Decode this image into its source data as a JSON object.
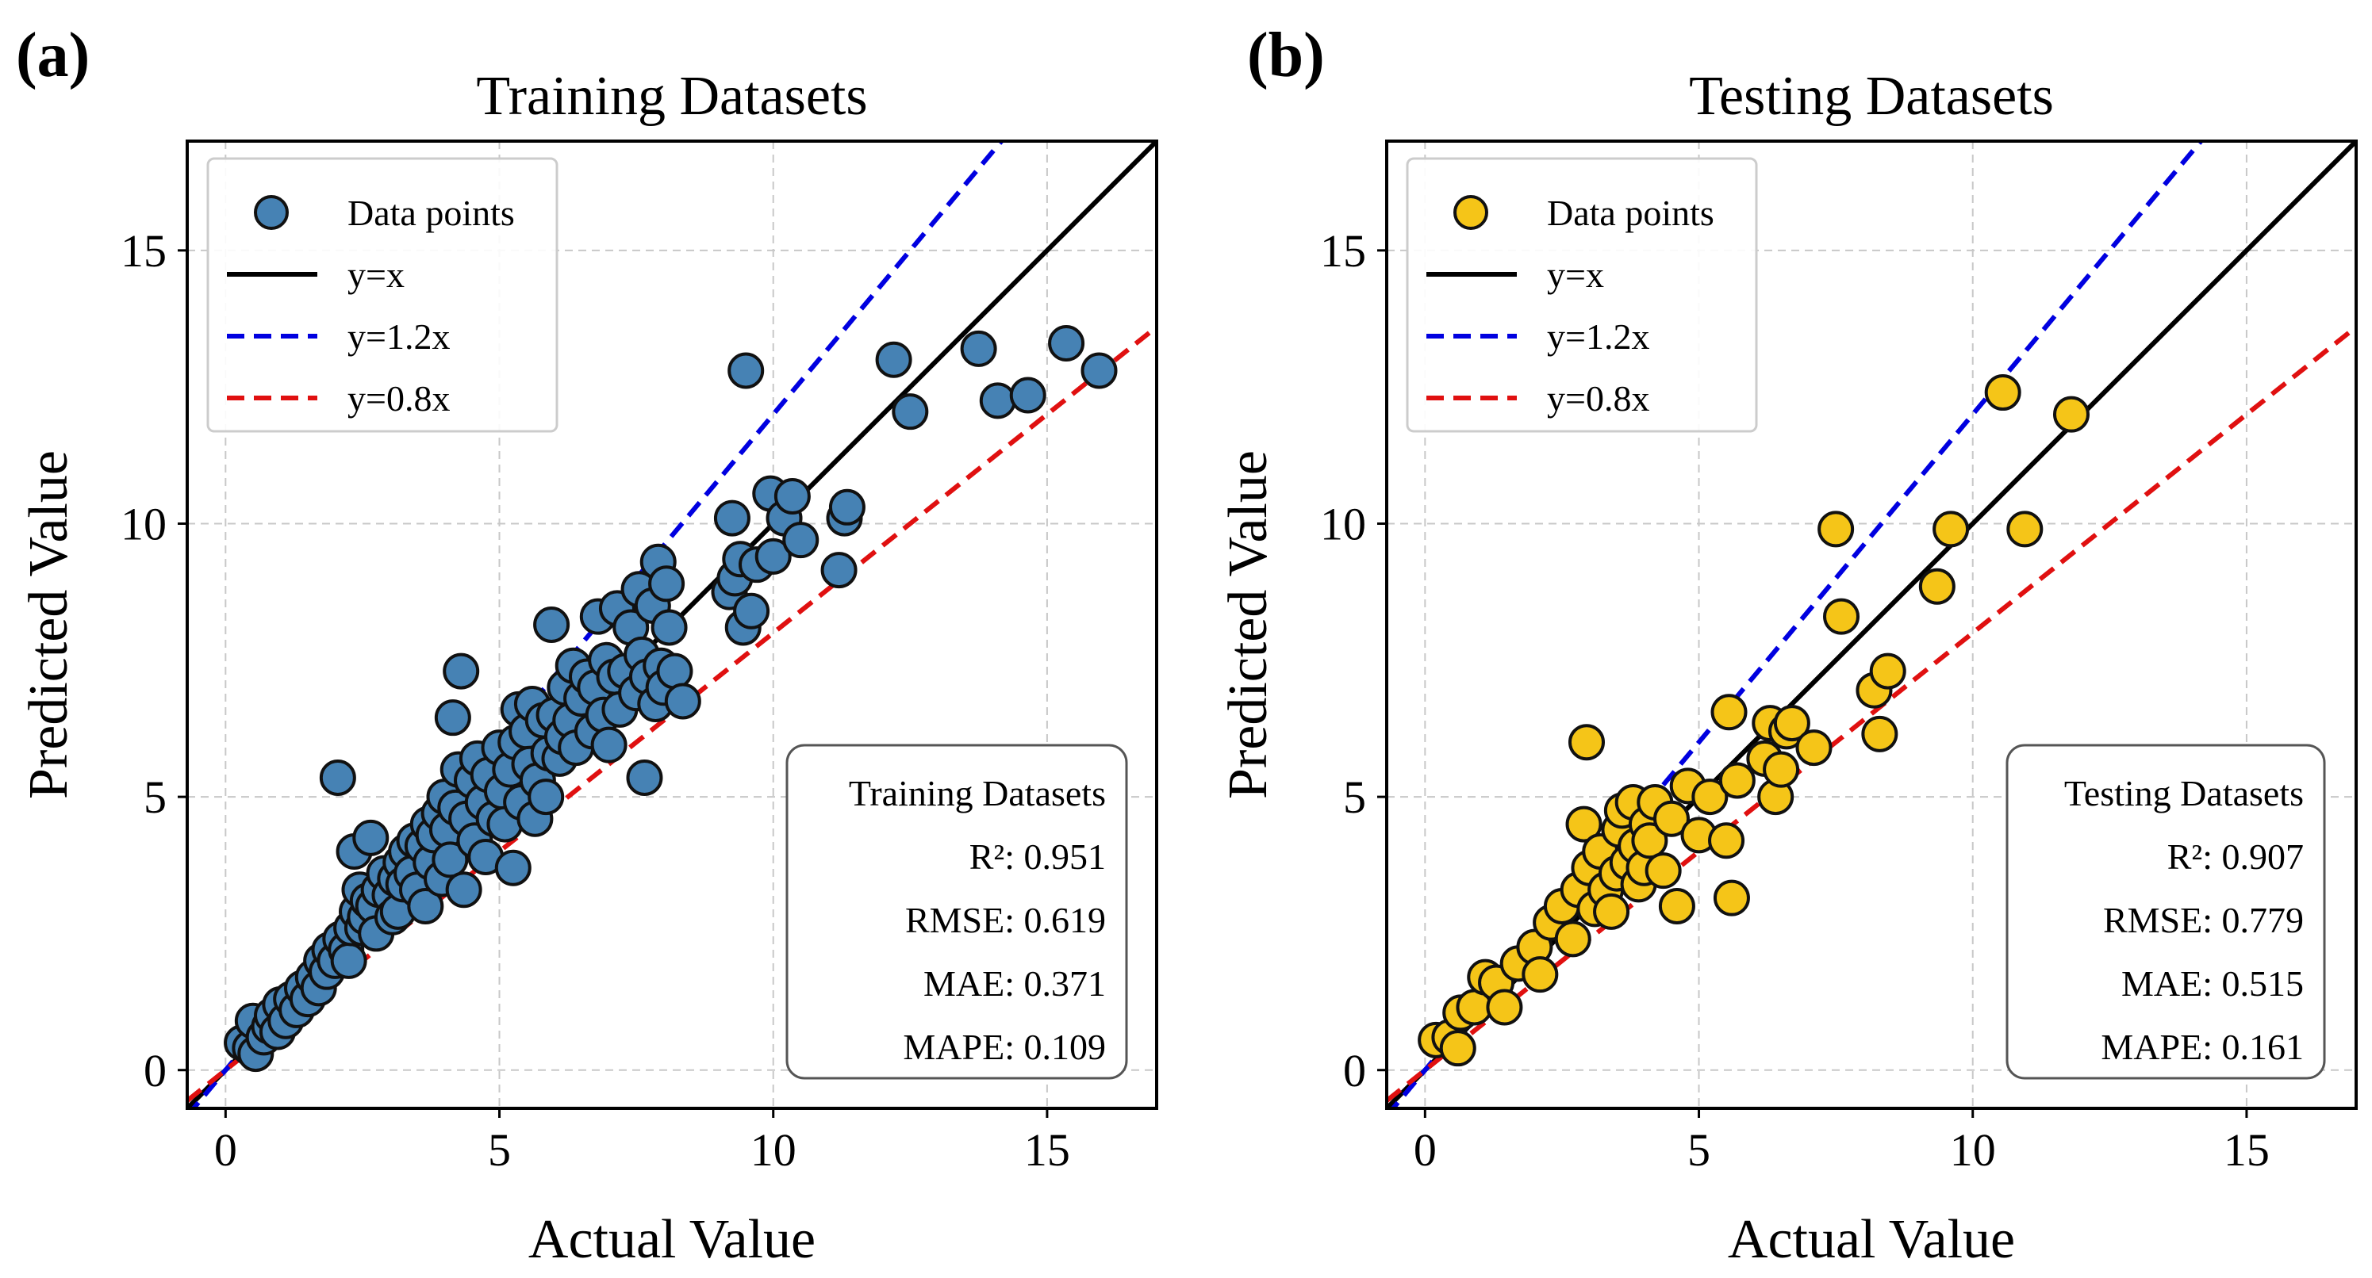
{
  "chart_data": [
    {
      "type": "scatter",
      "panel_label": "(a)",
      "title": "Training Datasets",
      "xlabel": "Actual Value",
      "ylabel": "Predicted Value",
      "xlim": [
        -0.7,
        17
      ],
      "ylim": [
        -0.7,
        17
      ],
      "xticks": [
        0,
        5,
        10,
        15
      ],
      "yticks": [
        0,
        5,
        10,
        15
      ],
      "xtick_labels": [
        "0",
        "5",
        "10",
        "15"
      ],
      "ytick_labels": [
        "0",
        "5",
        "10",
        "15"
      ],
      "grid": true,
      "legend_position": "top-left",
      "legend": [
        {
          "label": "Data points",
          "kind": "marker"
        },
        {
          "label": "y=x",
          "kind": "line",
          "slope": 1.0
        },
        {
          "label": "y=1.2x",
          "kind": "line",
          "slope": 1.2
        },
        {
          "label": "y=0.8x",
          "kind": "line",
          "slope": 0.8
        }
      ],
      "marker_color": "#4682b4",
      "stats_title": "Training Datasets",
      "stats": [
        {
          "label": "R²: 0.951"
        },
        {
          "label": "RMSE: 0.619"
        },
        {
          "label": "MAE: 0.371"
        },
        {
          "label": "MAPE: 0.109"
        }
      ],
      "points": [
        [
          0.3,
          0.5
        ],
        [
          0.45,
          0.4
        ],
        [
          0.5,
          0.9
        ],
        [
          0.55,
          0.3
        ],
        [
          0.7,
          0.6
        ],
        [
          0.8,
          0.8
        ],
        [
          0.85,
          1.0
        ],
        [
          0.95,
          0.7
        ],
        [
          1.0,
          1.2
        ],
        [
          1.1,
          0.9
        ],
        [
          1.2,
          1.3
        ],
        [
          1.3,
          1.1
        ],
        [
          1.4,
          1.5
        ],
        [
          1.5,
          1.3
        ],
        [
          1.6,
          1.7
        ],
        [
          1.7,
          1.5
        ],
        [
          1.75,
          2.0
        ],
        [
          1.85,
          1.8
        ],
        [
          1.9,
          2.2
        ],
        [
          2.0,
          2.0
        ],
        [
          2.05,
          5.35
        ],
        [
          2.1,
          2.4
        ],
        [
          2.2,
          2.2
        ],
        [
          2.25,
          2.0
        ],
        [
          2.3,
          2.6
        ],
        [
          2.35,
          4.0
        ],
        [
          2.4,
          2.9
        ],
        [
          2.45,
          3.3
        ],
        [
          2.5,
          2.6
        ],
        [
          2.55,
          2.8
        ],
        [
          2.6,
          3.1
        ],
        [
          2.65,
          4.25
        ],
        [
          2.7,
          3.0
        ],
        [
          2.75,
          2.5
        ],
        [
          2.8,
          3.3
        ],
        [
          2.9,
          3.6
        ],
        [
          3.0,
          3.2
        ],
        [
          3.05,
          2.8
        ],
        [
          3.1,
          3.5
        ],
        [
          3.15,
          2.9
        ],
        [
          3.2,
          3.8
        ],
        [
          3.25,
          3.4
        ],
        [
          3.3,
          4.0
        ],
        [
          3.4,
          3.6
        ],
        [
          3.45,
          4.2
        ],
        [
          3.5,
          3.3
        ],
        [
          3.6,
          4.1
        ],
        [
          3.65,
          3.0
        ],
        [
          3.7,
          4.5
        ],
        [
          3.75,
          3.8
        ],
        [
          3.8,
          4.3
        ],
        [
          3.9,
          4.7
        ],
        [
          3.95,
          3.5
        ],
        [
          4.0,
          5.0
        ],
        [
          4.05,
          4.4
        ],
        [
          4.1,
          3.85
        ],
        [
          4.15,
          6.45
        ],
        [
          4.2,
          4.8
        ],
        [
          4.25,
          5.5
        ],
        [
          4.3,
          7.3
        ],
        [
          4.35,
          3.3
        ],
        [
          4.4,
          4.6
        ],
        [
          4.5,
          5.3
        ],
        [
          4.55,
          4.2
        ],
        [
          4.6,
          5.7
        ],
        [
          4.7,
          4.9
        ],
        [
          4.75,
          3.9
        ],
        [
          4.8,
          5.4
        ],
        [
          4.9,
          4.6
        ],
        [
          5.0,
          5.9
        ],
        [
          5.05,
          5.1
        ],
        [
          5.1,
          4.5
        ],
        [
          5.2,
          5.5
        ],
        [
          5.25,
          3.7
        ],
        [
          5.3,
          6.0
        ],
        [
          5.35,
          6.6
        ],
        [
          5.4,
          4.9
        ],
        [
          5.5,
          6.2
        ],
        [
          5.55,
          5.6
        ],
        [
          5.6,
          6.7
        ],
        [
          5.65,
          4.6
        ],
        [
          5.7,
          5.3
        ],
        [
          5.8,
          6.4
        ],
        [
          5.85,
          5.0
        ],
        [
          5.9,
          5.8
        ],
        [
          5.95,
          8.15
        ],
        [
          6.0,
          6.5
        ],
        [
          6.1,
          5.7
        ],
        [
          6.15,
          6.1
        ],
        [
          6.2,
          7.0
        ],
        [
          6.3,
          6.4
        ],
        [
          6.35,
          7.4
        ],
        [
          6.4,
          5.9
        ],
        [
          6.5,
          6.8
        ],
        [
          6.6,
          7.2
        ],
        [
          6.7,
          6.2
        ],
        [
          6.75,
          7.0
        ],
        [
          6.8,
          8.3
        ],
        [
          6.9,
          6.5
        ],
        [
          6.95,
          7.5
        ],
        [
          7.0,
          5.95
        ],
        [
          7.1,
          7.2
        ],
        [
          7.15,
          8.45
        ],
        [
          7.2,
          6.6
        ],
        [
          7.3,
          7.3
        ],
        [
          7.4,
          8.1
        ],
        [
          7.5,
          6.9
        ],
        [
          7.55,
          8.8
        ],
        [
          7.6,
          7.6
        ],
        [
          7.65,
          5.35
        ],
        [
          7.7,
          7.2
        ],
        [
          7.8,
          8.5
        ],
        [
          7.85,
          6.7
        ],
        [
          7.9,
          9.3
        ],
        [
          7.95,
          7.4
        ],
        [
          8.0,
          7.0
        ],
        [
          8.05,
          8.9
        ],
        [
          8.1,
          8.1
        ],
        [
          8.2,
          7.3
        ],
        [
          8.35,
          6.75
        ],
        [
          9.2,
          8.75
        ],
        [
          9.25,
          10.1
        ],
        [
          9.3,
          9.0
        ],
        [
          9.4,
          9.35
        ],
        [
          9.45,
          8.1
        ],
        [
          9.5,
          12.8
        ],
        [
          9.6,
          8.4
        ],
        [
          9.7,
          9.25
        ],
        [
          9.95,
          10.55
        ],
        [
          10.0,
          9.4
        ],
        [
          10.2,
          10.1
        ],
        [
          10.35,
          10.5
        ],
        [
          10.5,
          9.7
        ],
        [
          11.2,
          9.15
        ],
        [
          11.3,
          10.1
        ],
        [
          11.35,
          10.3
        ],
        [
          12.2,
          13.0
        ],
        [
          12.5,
          12.05
        ],
        [
          13.75,
          13.2
        ],
        [
          14.1,
          12.25
        ],
        [
          14.65,
          12.35
        ],
        [
          15.35,
          13.3
        ],
        [
          15.95,
          12.8
        ]
      ]
    },
    {
      "type": "scatter",
      "panel_label": "(b)",
      "title": "Testing Datasets",
      "xlabel": "Actual Value",
      "ylabel": "Predicted Value",
      "xlim": [
        -0.7,
        17
      ],
      "ylim": [
        -0.7,
        17
      ],
      "xticks": [
        0,
        5,
        10,
        15
      ],
      "yticks": [
        0,
        5,
        10,
        15
      ],
      "xtick_labels": [
        "0",
        "5",
        "10",
        "15"
      ],
      "ytick_labels": [
        "0",
        "5",
        "10",
        "15"
      ],
      "grid": true,
      "legend_position": "top-left",
      "legend": [
        {
          "label": "Data points",
          "kind": "marker"
        },
        {
          "label": "y=x",
          "kind": "line",
          "slope": 1.0
        },
        {
          "label": "y=1.2x",
          "kind": "line",
          "slope": 1.2
        },
        {
          "label": "y=0.8x",
          "kind": "line",
          "slope": 0.8
        }
      ],
      "marker_color": "#f5c518",
      "stats_title": "Testing Datasets",
      "stats": [
        {
          "label": "R²: 0.907"
        },
        {
          "label": "RMSE: 0.779"
        },
        {
          "label": "MAE: 0.515"
        },
        {
          "label": "MAPE: 0.161"
        }
      ],
      "points": [
        [
          0.2,
          0.55
        ],
        [
          0.45,
          0.6
        ],
        [
          0.6,
          0.4
        ],
        [
          0.65,
          1.05
        ],
        [
          0.9,
          1.15
        ],
        [
          1.1,
          1.7
        ],
        [
          1.3,
          1.6
        ],
        [
          1.45,
          1.15
        ],
        [
          1.7,
          1.95
        ],
        [
          2.0,
          2.25
        ],
        [
          2.1,
          1.75
        ],
        [
          2.3,
          2.7
        ],
        [
          2.5,
          3.0
        ],
        [
          2.7,
          2.4
        ],
        [
          2.8,
          3.3
        ],
        [
          2.9,
          4.5
        ],
        [
          2.95,
          6.0
        ],
        [
          3.0,
          3.7
        ],
        [
          3.1,
          2.95
        ],
        [
          3.2,
          4.0
        ],
        [
          3.3,
          3.3
        ],
        [
          3.4,
          2.9
        ],
        [
          3.5,
          3.6
        ],
        [
          3.55,
          4.4
        ],
        [
          3.6,
          4.75
        ],
        [
          3.7,
          3.8
        ],
        [
          3.8,
          4.9
        ],
        [
          3.85,
          4.1
        ],
        [
          3.9,
          3.4
        ],
        [
          4.0,
          3.7
        ],
        [
          4.05,
          4.5
        ],
        [
          4.1,
          4.2
        ],
        [
          4.2,
          4.9
        ],
        [
          4.35,
          3.65
        ],
        [
          4.5,
          4.6
        ],
        [
          4.6,
          3.0
        ],
        [
          4.8,
          5.2
        ],
        [
          5.0,
          4.3
        ],
        [
          5.2,
          5.0
        ],
        [
          5.5,
          4.2
        ],
        [
          5.55,
          6.55
        ],
        [
          5.6,
          3.15
        ],
        [
          5.7,
          5.3
        ],
        [
          6.2,
          5.7
        ],
        [
          6.3,
          6.35
        ],
        [
          6.4,
          5.0
        ],
        [
          6.5,
          5.5
        ],
        [
          6.6,
          6.2
        ],
        [
          6.7,
          6.35
        ],
        [
          7.1,
          5.9
        ],
        [
          7.5,
          9.9
        ],
        [
          7.6,
          8.3
        ],
        [
          8.2,
          6.95
        ],
        [
          8.3,
          6.15
        ],
        [
          8.45,
          7.3
        ],
        [
          9.35,
          8.85
        ],
        [
          9.6,
          9.9
        ],
        [
          10.55,
          12.4
        ],
        [
          10.95,
          9.9
        ],
        [
          11.8,
          12.0
        ]
      ]
    }
  ]
}
